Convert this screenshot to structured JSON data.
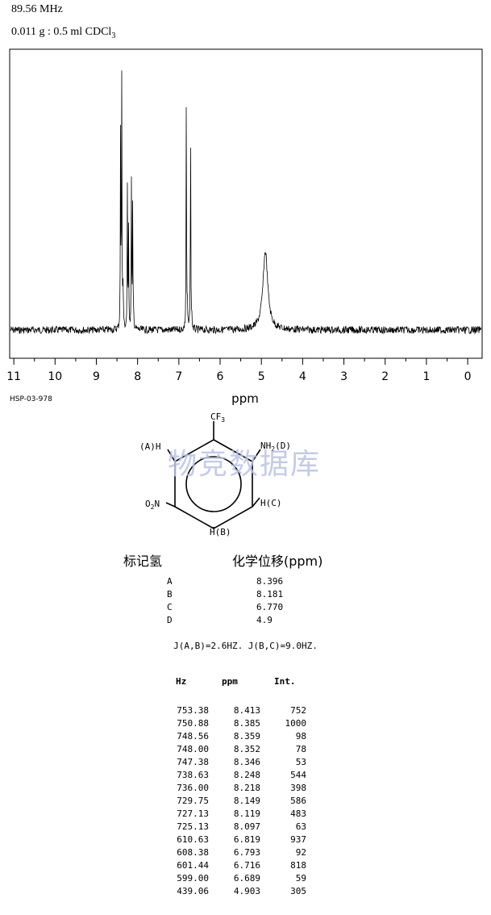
{
  "header": {
    "frequency": "89.56 MHz",
    "sample_prefix": "0.011 g : 0.5 ml CDCl",
    "sample_sub": "3"
  },
  "chart_data": {
    "type": "line",
    "title": "",
    "xlabel": "ppm",
    "ylabel": "",
    "xlim": [
      11.1,
      -0.35
    ],
    "x_reversed": true,
    "ylim": [
      0,
      1050
    ],
    "grid": false,
    "ticks": [
      "11",
      "10",
      "9",
      "8",
      "7",
      "6",
      "5",
      "4",
      "3",
      "2",
      "1",
      "0"
    ],
    "tick_values": [
      11,
      10,
      9,
      8,
      7,
      6,
      5,
      4,
      3,
      2,
      1,
      0
    ],
    "peaks": [
      {
        "ppm": 8.413,
        "int": 752
      },
      {
        "ppm": 8.385,
        "int": 1000
      },
      {
        "ppm": 8.359,
        "int": 98
      },
      {
        "ppm": 8.352,
        "int": 78
      },
      {
        "ppm": 8.346,
        "int": 53
      },
      {
        "ppm": 8.248,
        "int": 544
      },
      {
        "ppm": 8.218,
        "int": 398
      },
      {
        "ppm": 8.149,
        "int": 586
      },
      {
        "ppm": 8.119,
        "int": 483
      },
      {
        "ppm": 8.097,
        "int": 63
      },
      {
        "ppm": 6.819,
        "int": 937
      },
      {
        "ppm": 6.793,
        "int": 92
      },
      {
        "ppm": 6.716,
        "int": 818
      },
      {
        "ppm": 6.689,
        "int": 59
      },
      {
        "ppm": 4.903,
        "int": 305
      }
    ]
  },
  "code": "HSP-03-978",
  "structure": {
    "cf3": "CF",
    "cf3_sub": "3",
    "label_a": "(A)H",
    "label_d_prefix": "NH",
    "label_d_sub": "2",
    "label_d_suffix": "(D)",
    "label_no2_prefix": "O",
    "label_no2_sub": "2",
    "label_no2_suffix": "N",
    "label_c": "H(C)",
    "label_b": "H(B)"
  },
  "watermark": "物竞数据库",
  "shift_table": {
    "header_label": "标记氢",
    "header_shift": "化学位移(ppm)",
    "rows": [
      {
        "label": "A",
        "shift": "8.396"
      },
      {
        "label": "B",
        "shift": "8.181"
      },
      {
        "label": "C",
        "shift": "6.770"
      },
      {
        "label": "D",
        "shift": "4.9"
      }
    ]
  },
  "coupling": "J(A,B)=2.6HZ. J(B,C)=9.0HZ.",
  "peak_table": {
    "headers": [
      "Hz",
      "ppm",
      "Int."
    ],
    "rows": [
      [
        "753.38",
        "8.413",
        "752"
      ],
      [
        "750.88",
        "8.385",
        "1000"
      ],
      [
        "748.56",
        "8.359",
        "98"
      ],
      [
        "748.00",
        "8.352",
        "78"
      ],
      [
        "747.38",
        "8.346",
        "53"
      ],
      [
        "738.63",
        "8.248",
        "544"
      ],
      [
        "736.00",
        "8.218",
        "398"
      ],
      [
        "729.75",
        "8.149",
        "586"
      ],
      [
        "727.13",
        "8.119",
        "483"
      ],
      [
        "725.13",
        "8.097",
        "63"
      ],
      [
        "610.63",
        "6.819",
        "937"
      ],
      [
        "608.38",
        "6.793",
        "92"
      ],
      [
        "601.44",
        "6.716",
        "818"
      ],
      [
        "599.00",
        "6.689",
        "59"
      ],
      [
        "439.06",
        "4.903",
        "305"
      ]
    ]
  }
}
